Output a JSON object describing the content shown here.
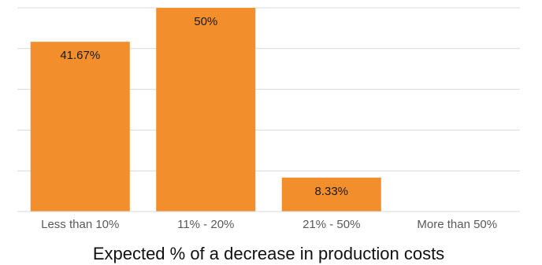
{
  "chart_data": {
    "type": "bar",
    "categories": [
      "Less than 10%",
      "11% - 20%",
      "21% - 50%",
      "More than 50%"
    ],
    "values": [
      41.67,
      50,
      8.33,
      0
    ],
    "data_labels": [
      "41.67%",
      "50%",
      "8.33%",
      ""
    ],
    "xlabel": "Expected % of a decrease in production costs",
    "ylabel": "",
    "ylim": [
      0,
      50
    ],
    "grid": true,
    "bar_color": "#F28E2B",
    "gridline_color": "#D9D9D9"
  }
}
